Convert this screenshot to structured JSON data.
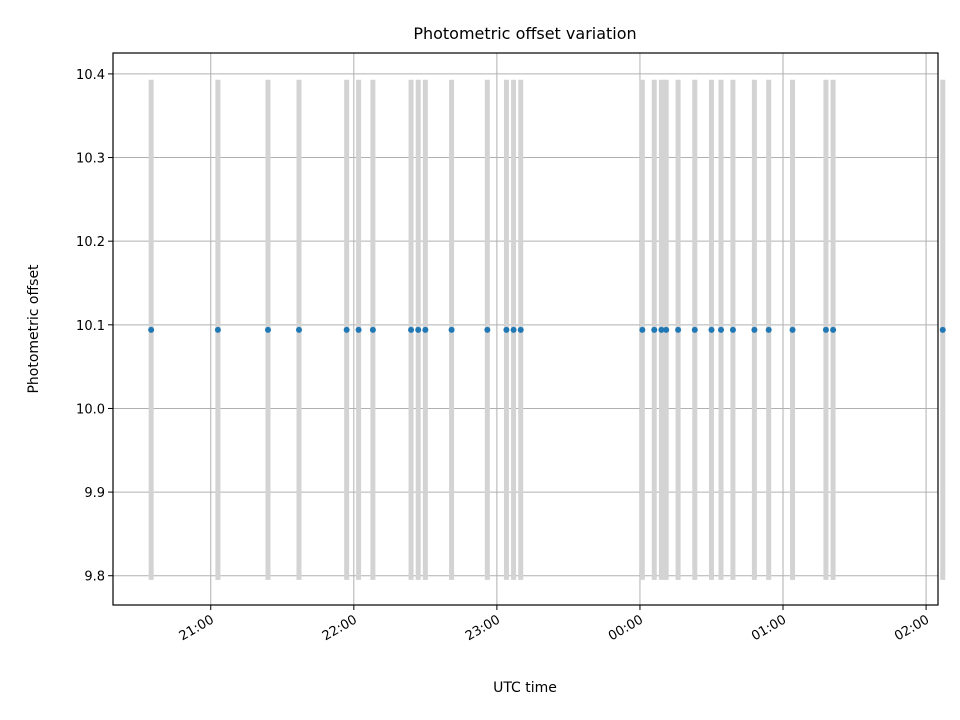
{
  "chart_data": {
    "type": "scatter",
    "title": "Photometric offset variation",
    "xlabel": "UTC time",
    "ylabel": "Photometric offset",
    "x_axis": {
      "type": "time",
      "start": "20:19",
      "end": "02:05",
      "ticks": [
        "21:00",
        "22:00",
        "23:00",
        "00:00",
        "01:00",
        "02:00"
      ]
    },
    "y_axis": {
      "min": 9.765,
      "max": 10.425,
      "ticks": [
        "9.8",
        "9.9",
        "10.0",
        "10.1",
        "10.2",
        "10.3",
        "10.4"
      ]
    },
    "grid": true,
    "points": {
      "x": [
        "20:35",
        "21:03",
        "21:24",
        "21:37",
        "21:57",
        "22:02",
        "22:08",
        "22:24",
        "22:27",
        "22:30",
        "22:41",
        "22:56",
        "23:04",
        "23:07",
        "23:10",
        "00:01",
        "00:06",
        "00:09",
        "00:11",
        "00:16",
        "00:23",
        "00:30",
        "00:34",
        "00:39",
        "00:48",
        "00:54",
        "01:04",
        "01:18",
        "01:21",
        "02:07"
      ],
      "y": [
        10.094,
        10.094,
        10.094,
        10.094,
        10.094,
        10.094,
        10.094,
        10.094,
        10.094,
        10.094,
        10.094,
        10.094,
        10.094,
        10.094,
        10.094,
        10.094,
        10.094,
        10.094,
        10.094,
        10.094,
        10.094,
        10.094,
        10.094,
        10.094,
        10.094,
        10.094,
        10.094,
        10.094,
        10.094,
        10.094
      ],
      "yerr_low": 9.795,
      "yerr_high": 10.393
    },
    "colors": {
      "point": "#1f77b4",
      "errorbar": "#d3d3d3",
      "grid": "#b0b0b0",
      "axis": "#000000"
    }
  }
}
